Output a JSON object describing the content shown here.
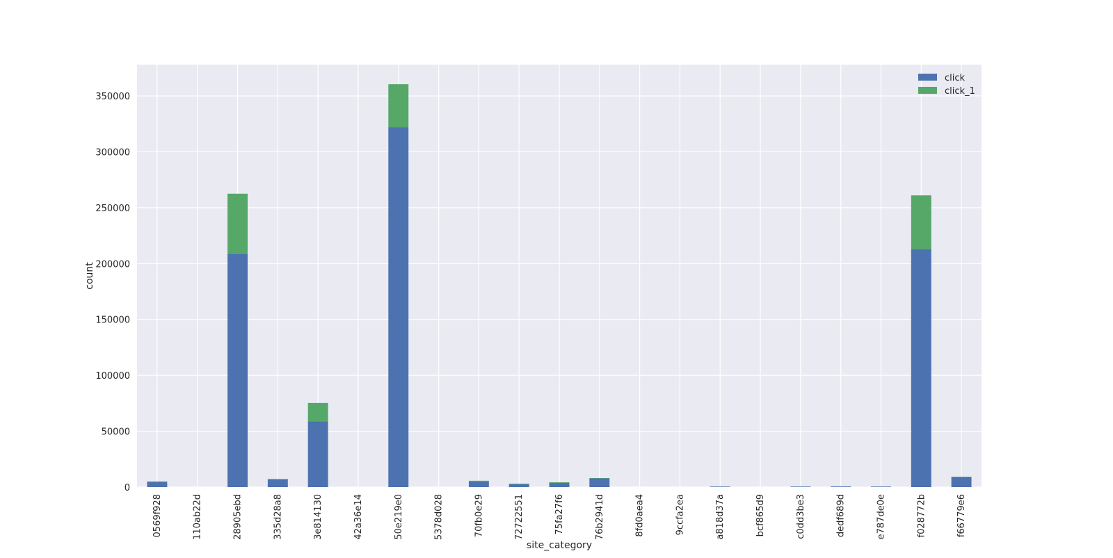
{
  "chart_data": {
    "type": "bar",
    "stacked": true,
    "title": "",
    "xlabel": "site_category",
    "ylabel": "count",
    "ylim": [
      0,
      378000
    ],
    "yticks": [
      0,
      50000,
      100000,
      150000,
      200000,
      250000,
      300000,
      350000
    ],
    "grid": true,
    "legend_position": "top-right",
    "categories": [
      "0569f928",
      "110ab22d",
      "28905ebd",
      "335d28a8",
      "3e814130",
      "42a36e14",
      "50e219e0",
      "5378d028",
      "70fb0e29",
      "72722551",
      "75fa27f6",
      "76b2941d",
      "8fd0aea4",
      "9ccfa2ea",
      "a818d37a",
      "bcf865d9",
      "c0dd3be3",
      "dedf689d",
      "e787de0e",
      "f028772b",
      "f66779e6"
    ],
    "series": [
      {
        "name": "click",
        "color": "#4c72b0",
        "values": [
          4800,
          0,
          209000,
          6700,
          58800,
          0,
          322000,
          0,
          5000,
          2500,
          3800,
          7800,
          0,
          0,
          500,
          0,
          500,
          600,
          500,
          213000,
          9000
        ]
      },
      {
        "name": "click_1",
        "color": "#55a868",
        "values": [
          300,
          0,
          53500,
          700,
          16500,
          0,
          38500,
          0,
          700,
          600,
          600,
          300,
          0,
          0,
          0,
          0,
          0,
          0,
          0,
          48000,
          300
        ]
      }
    ],
    "background_color": "#eaeaf2",
    "grid_color": "#ffffff"
  }
}
